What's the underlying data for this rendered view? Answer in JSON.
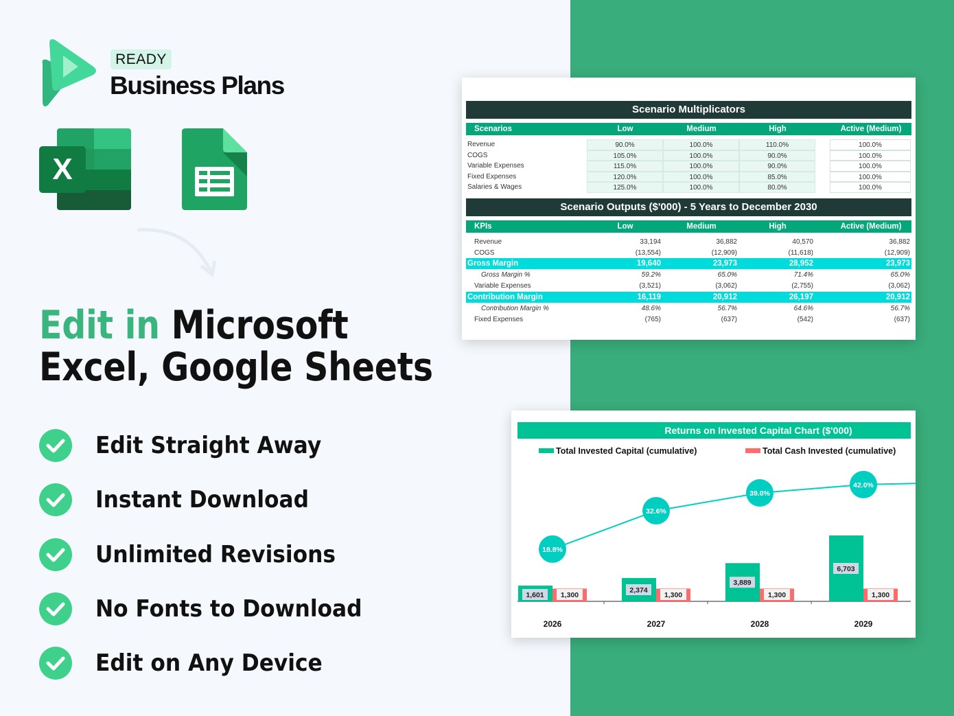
{
  "brand": {
    "badge": "READY",
    "name": "Business Plans",
    "colors": {
      "accent": "#3bb57e",
      "right_panel": "#39ad7b"
    }
  },
  "app_icons": [
    {
      "icon": "microsoft-excel-icon",
      "letter": "X"
    },
    {
      "icon": "google-sheets-icon"
    }
  ],
  "headline": {
    "accent": "Edit in",
    "line1_rest": " Microsoft",
    "line2": "Excel, Google Sheets"
  },
  "features": [
    {
      "label": "Edit Straight Away",
      "icon": "check-circle-icon"
    },
    {
      "label": "Instant Download",
      "icon": "check-circle-icon"
    },
    {
      "label": "Unlimited Revisions",
      "icon": "check-circle-icon"
    },
    {
      "label": "No Fonts to Download",
      "icon": "check-circle-icon"
    },
    {
      "label": "Edit on Any Device",
      "icon": "check-circle-icon"
    }
  ],
  "multiplicators": {
    "title": "Scenario Multiplicators",
    "headers": [
      "Scenarios",
      "Low",
      "Medium",
      "High",
      "Active (Medium)"
    ],
    "rows": [
      {
        "label": "Revenue",
        "values": [
          "90.0%",
          "100.0%",
          "110.0%",
          "100.0%"
        ]
      },
      {
        "label": "COGS",
        "values": [
          "105.0%",
          "100.0%",
          "90.0%",
          "100.0%"
        ]
      },
      {
        "label": "Variable Expenses",
        "values": [
          "115.0%",
          "100.0%",
          "90.0%",
          "100.0%"
        ]
      },
      {
        "label": "Fixed Expenses",
        "values": [
          "120.0%",
          "100.0%",
          "85.0%",
          "100.0%"
        ]
      },
      {
        "label": "Salaries & Wages",
        "values": [
          "125.0%",
          "100.0%",
          "80.0%",
          "100.0%"
        ]
      }
    ]
  },
  "outputs": {
    "title": "Scenario Outputs ($'000) - 5 Years to December 2030",
    "headers": [
      "KPIs",
      "Low",
      "Medium",
      "High",
      "Active (Medium)"
    ],
    "rows": [
      {
        "label": "Revenue",
        "style": "normal",
        "values": [
          "33,194",
          "36,882",
          "40,570",
          "36,882"
        ]
      },
      {
        "label": "COGS",
        "style": "normal",
        "values": [
          "(13,554)",
          "(12,909)",
          "(11,618)",
          "(12,909)"
        ]
      },
      {
        "label": "Gross Margin",
        "style": "highlight",
        "values": [
          "19,640",
          "23,973",
          "28,952",
          "23,973"
        ]
      },
      {
        "label": "Gross Margin %",
        "style": "italic",
        "values": [
          "59.2%",
          "65.0%",
          "71.4%",
          "65.0%"
        ]
      },
      {
        "label": "Variable Expenses",
        "style": "normal",
        "values": [
          "(3,521)",
          "(3,062)",
          "(2,755)",
          "(3,062)"
        ]
      },
      {
        "label": "Contribution Margin",
        "style": "highlight",
        "values": [
          "16,119",
          "20,912",
          "26,197",
          "20,912"
        ]
      },
      {
        "label": "Contribution Margin %",
        "style": "italic",
        "values": [
          "48.6%",
          "56.7%",
          "64.6%",
          "56.7%"
        ]
      },
      {
        "label": "Fixed Expenses",
        "style": "normal",
        "values": [
          "(765)",
          "(637)",
          "(542)",
          "(637)"
        ]
      }
    ]
  },
  "chart_data": {
    "type": "bar",
    "title": "Returns on Invested Capital Chart ($'000)",
    "categories": [
      "2026",
      "2027",
      "2028",
      "2029"
    ],
    "series": [
      {
        "name": "Total Invested Capital (cumulative)",
        "type": "bar",
        "color": "#00c395",
        "values": [
          1601,
          2374,
          3889,
          6703
        ],
        "labels": [
          "1,601",
          "2,374",
          "3,889",
          "6,703"
        ]
      },
      {
        "name": "Total Cash Invested (cumulative)",
        "type": "bar",
        "color": "#ff6b6b",
        "values": [
          1300,
          1300,
          1300,
          1300
        ],
        "labels": [
          "1,300",
          "1,300",
          "1,300",
          "1,300"
        ]
      },
      {
        "type": "line",
        "color": "#00cec0",
        "values": [
          18.8,
          32.6,
          39.0,
          42.0
        ],
        "labels": [
          "18.8%",
          "32.6%",
          "39.0%",
          "42.0%"
        ]
      }
    ],
    "legend": "top",
    "grid": false
  }
}
